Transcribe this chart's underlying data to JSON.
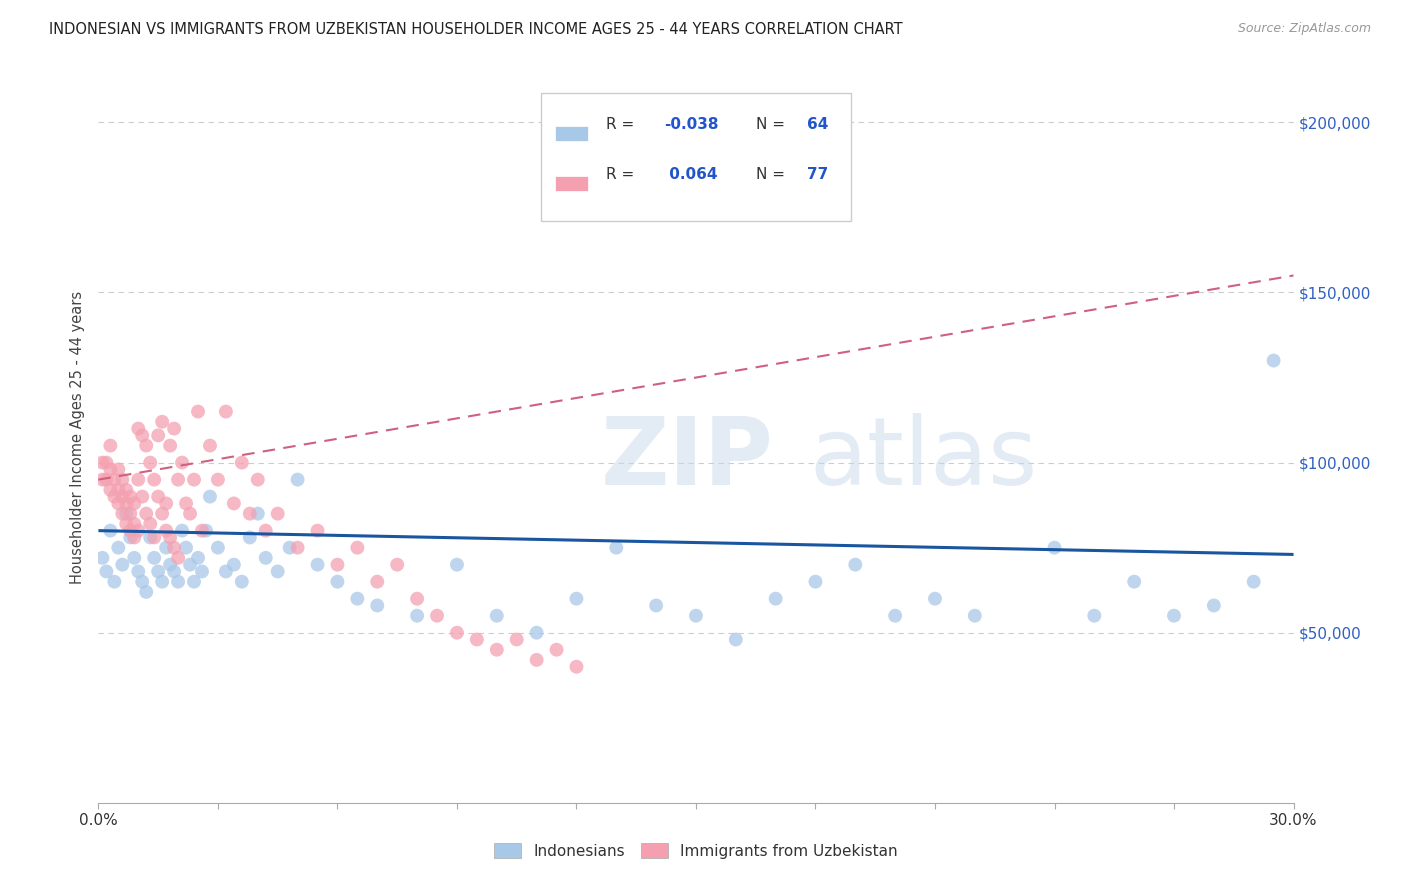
{
  "title": "INDONESIAN VS IMMIGRANTS FROM UZBEKISTAN HOUSEHOLDER INCOME AGES 25 - 44 YEARS CORRELATION CHART",
  "source": "Source: ZipAtlas.com",
  "ylabel": "Householder Income Ages 25 - 44 years",
  "xlim": [
    0.0,
    0.3
  ],
  "ylim": [
    0,
    215000
  ],
  "watermark_zip": "ZIP",
  "watermark_atlas": "atlas",
  "legend_r_blue": "-0.038",
  "legend_n_blue": "64",
  "legend_r_pink": "0.064",
  "legend_n_pink": "77",
  "blue_color": "#a8c8e8",
  "pink_color": "#f4a0b0",
  "blue_line_color": "#1a56a0",
  "pink_line_color": "#d06080",
  "background_color": "#ffffff",
  "grid_color": "#cccccc",
  "blue_scatter_x": [
    0.001,
    0.002,
    0.003,
    0.004,
    0.005,
    0.006,
    0.007,
    0.008,
    0.009,
    0.01,
    0.011,
    0.012,
    0.013,
    0.014,
    0.015,
    0.016,
    0.017,
    0.018,
    0.019,
    0.02,
    0.021,
    0.022,
    0.023,
    0.024,
    0.025,
    0.026,
    0.027,
    0.028,
    0.03,
    0.032,
    0.034,
    0.036,
    0.038,
    0.04,
    0.042,
    0.045,
    0.048,
    0.05,
    0.055,
    0.06,
    0.065,
    0.07,
    0.08,
    0.09,
    0.1,
    0.11,
    0.12,
    0.13,
    0.14,
    0.15,
    0.16,
    0.17,
    0.18,
    0.19,
    0.2,
    0.21,
    0.22,
    0.24,
    0.25,
    0.26,
    0.27,
    0.28,
    0.29,
    0.295
  ],
  "blue_scatter_y": [
    72000,
    68000,
    80000,
    65000,
    75000,
    70000,
    85000,
    78000,
    72000,
    68000,
    65000,
    62000,
    78000,
    72000,
    68000,
    65000,
    75000,
    70000,
    68000,
    65000,
    80000,
    75000,
    70000,
    65000,
    72000,
    68000,
    80000,
    90000,
    75000,
    68000,
    70000,
    65000,
    78000,
    85000,
    72000,
    68000,
    75000,
    95000,
    70000,
    65000,
    60000,
    58000,
    55000,
    70000,
    55000,
    50000,
    60000,
    75000,
    58000,
    55000,
    48000,
    60000,
    65000,
    70000,
    55000,
    60000,
    55000,
    75000,
    55000,
    65000,
    55000,
    58000,
    65000,
    130000
  ],
  "pink_scatter_x": [
    0.001,
    0.001,
    0.002,
    0.002,
    0.003,
    0.003,
    0.003,
    0.004,
    0.004,
    0.005,
    0.005,
    0.005,
    0.006,
    0.006,
    0.006,
    0.007,
    0.007,
    0.007,
    0.008,
    0.008,
    0.008,
    0.009,
    0.009,
    0.009,
    0.01,
    0.01,
    0.01,
    0.011,
    0.011,
    0.012,
    0.012,
    0.013,
    0.013,
    0.014,
    0.014,
    0.015,
    0.015,
    0.016,
    0.016,
    0.017,
    0.017,
    0.018,
    0.018,
    0.019,
    0.019,
    0.02,
    0.02,
    0.021,
    0.022,
    0.023,
    0.024,
    0.025,
    0.026,
    0.028,
    0.03,
    0.032,
    0.034,
    0.036,
    0.038,
    0.04,
    0.042,
    0.045,
    0.05,
    0.055,
    0.06,
    0.065,
    0.07,
    0.075,
    0.08,
    0.085,
    0.09,
    0.095,
    0.1,
    0.105,
    0.11,
    0.115,
    0.12
  ],
  "pink_scatter_y": [
    95000,
    100000,
    95000,
    100000,
    92000,
    98000,
    105000,
    90000,
    95000,
    88000,
    92000,
    98000,
    85000,
    90000,
    95000,
    82000,
    88000,
    92000,
    80000,
    85000,
    90000,
    78000,
    82000,
    88000,
    110000,
    95000,
    80000,
    108000,
    90000,
    105000,
    85000,
    100000,
    82000,
    95000,
    78000,
    90000,
    108000,
    85000,
    112000,
    80000,
    88000,
    78000,
    105000,
    75000,
    110000,
    72000,
    95000,
    100000,
    88000,
    85000,
    95000,
    115000,
    80000,
    105000,
    95000,
    115000,
    88000,
    100000,
    85000,
    95000,
    80000,
    85000,
    75000,
    80000,
    70000,
    75000,
    65000,
    70000,
    60000,
    55000,
    50000,
    48000,
    45000,
    48000,
    42000,
    45000,
    40000
  ],
  "blue_trend_x": [
    0.0,
    0.3
  ],
  "blue_trend_y": [
    80000,
    73000
  ],
  "pink_trend_x": [
    0.0,
    0.3
  ],
  "pink_trend_y": [
    95000,
    155000
  ]
}
